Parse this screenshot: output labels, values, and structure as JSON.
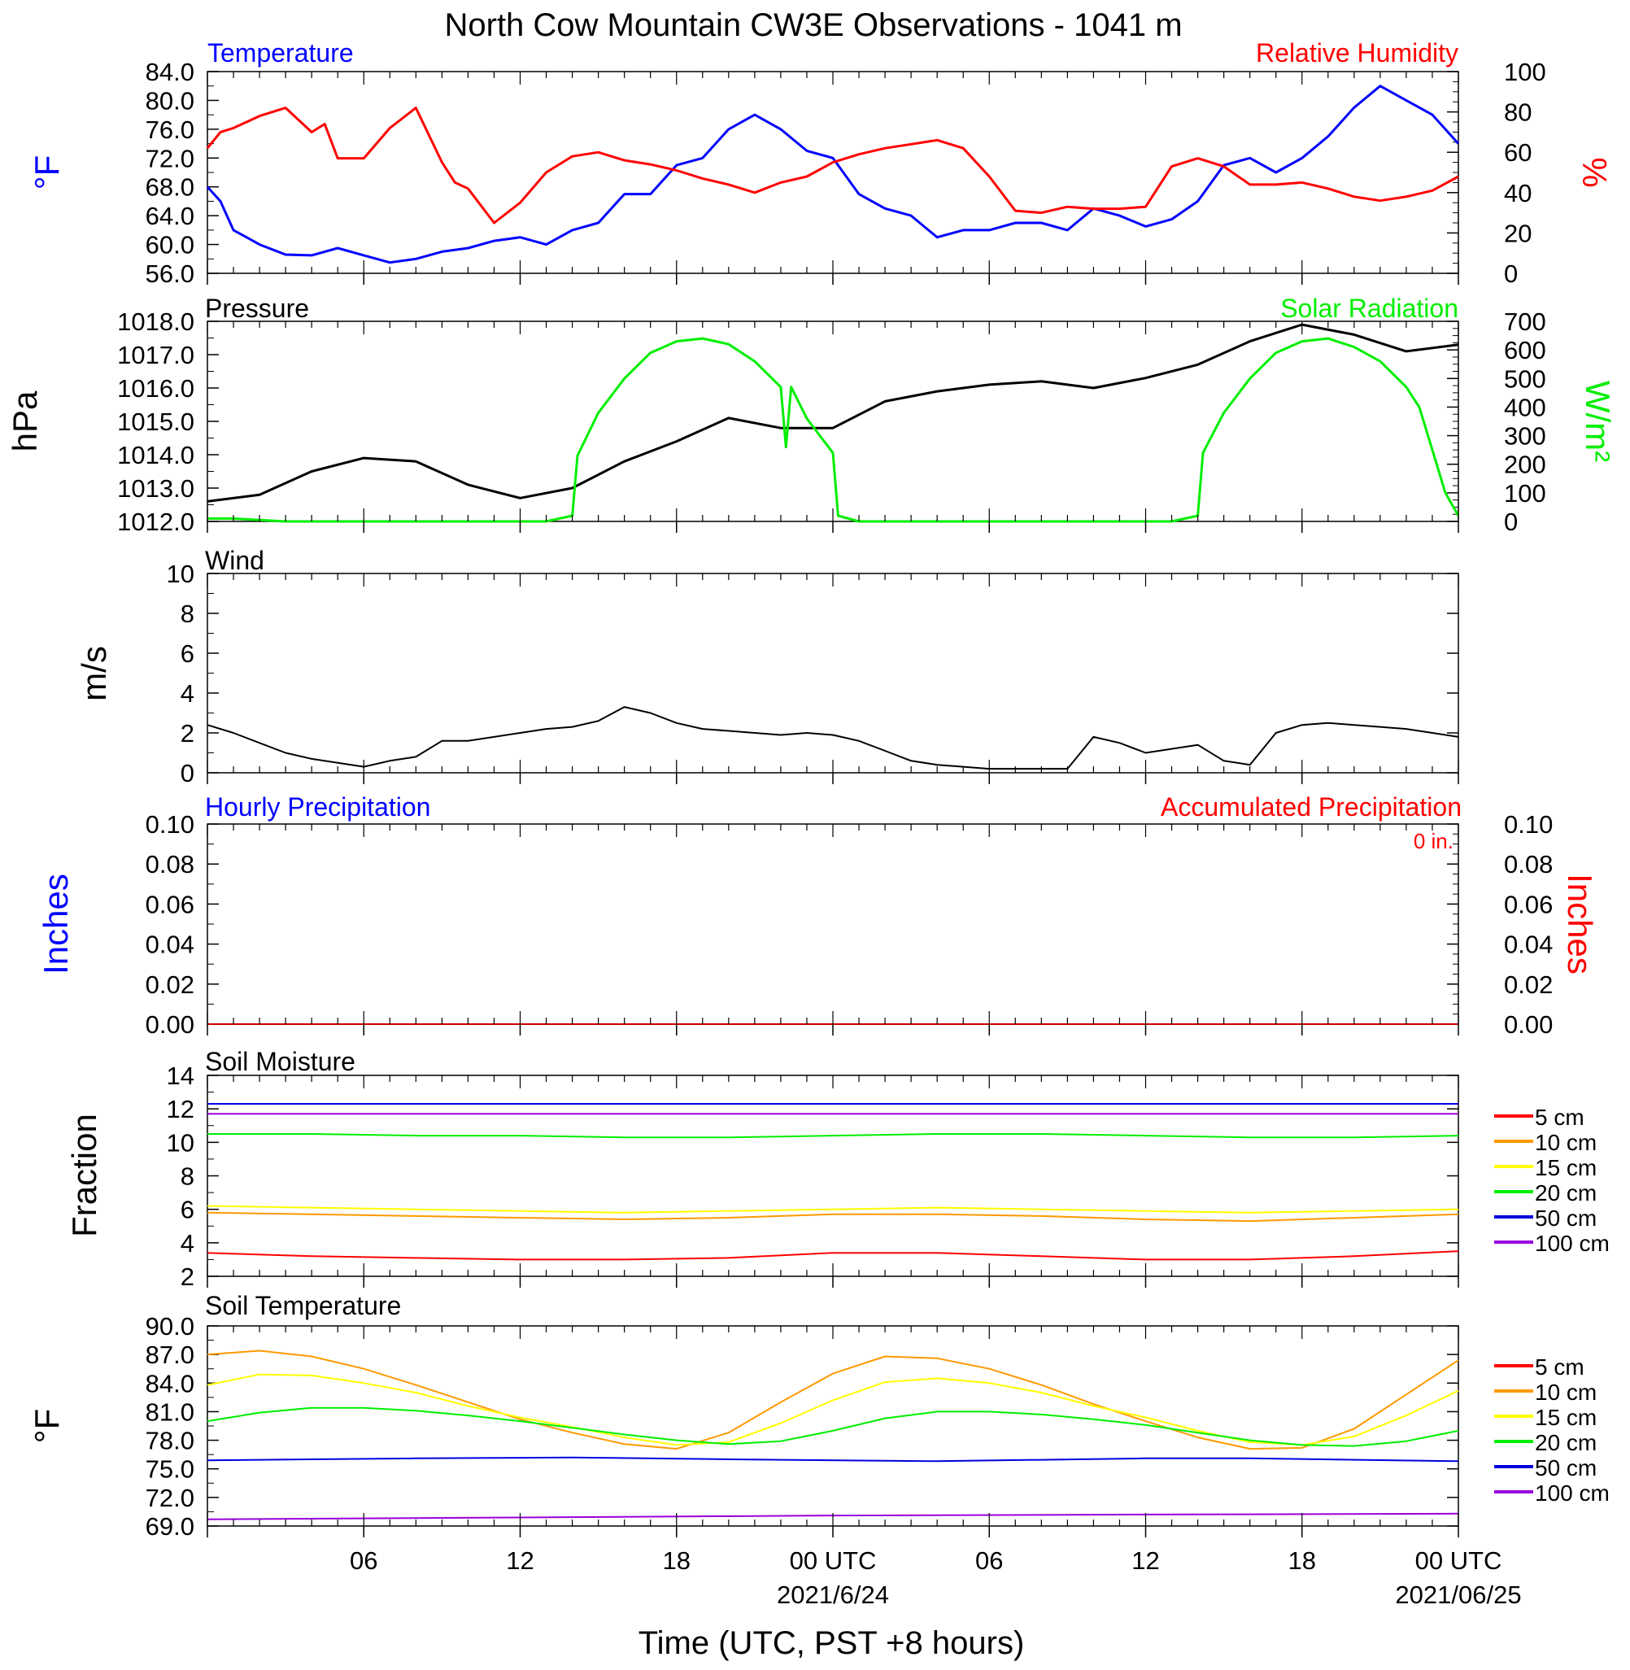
{
  "title": "North Cow Mountain CW3E Observations - 1041 m",
  "x_axis": {
    "label": "Time (UTC, PST +8 hours)",
    "range_hours": [
      0,
      48
    ],
    "ticks": [
      {
        "hour": 6,
        "label": "06"
      },
      {
        "hour": 12,
        "label": "12"
      },
      {
        "hour": 18,
        "label": "18"
      },
      {
        "hour": 24,
        "label": "00 UTC",
        "sublabel": "2021/6/24"
      },
      {
        "hour": 30,
        "label": "06"
      },
      {
        "hour": 36,
        "label": "12"
      },
      {
        "hour": 42,
        "label": "18"
      },
      {
        "hour": 48,
        "label": "00 UTC",
        "sublabel": "2021/06/25"
      }
    ]
  },
  "panels": {
    "temp": {
      "left_title": "Temperature",
      "right_title": "Relative Humidity",
      "left_unit": "°F",
      "right_unit": "%",
      "left_ticks": [
        "84.0",
        "80.0",
        "76.0",
        "72.0",
        "68.0",
        "64.0",
        "60.0",
        "56.0"
      ],
      "right_ticks": [
        "100",
        "80",
        "60",
        "40",
        "20",
        "0"
      ]
    },
    "pressure": {
      "left_title": "Pressure",
      "right_title": "Solar Radiation",
      "left_unit": "hPa",
      "right_unit": "W/m²",
      "left_ticks": [
        "1018.0",
        "1017.0",
        "1016.0",
        "1015.0",
        "1014.0",
        "1013.0",
        "1012.0"
      ],
      "right_ticks": [
        "700",
        "600",
        "500",
        "400",
        "300",
        "200",
        "100",
        "0"
      ]
    },
    "wind": {
      "left_title": "Wind",
      "left_unit": "m/s",
      "left_ticks": [
        "10",
        "8",
        "6",
        "4",
        "2",
        "0"
      ]
    },
    "precip": {
      "left_title": "Hourly Precipitation",
      "right_title": "Accumulated Precipitation",
      "accum_label": "0 in.",
      "left_unit": "Inches",
      "right_unit": "Inches",
      "left_ticks": [
        "0.10",
        "0.08",
        "0.06",
        "0.04",
        "0.02",
        "0.00"
      ],
      "right_ticks": [
        "0.10",
        "0.08",
        "0.06",
        "0.04",
        "0.02",
        "0.00"
      ]
    },
    "soilm": {
      "left_title": "Soil Moisture",
      "left_unit": "Fraction",
      "left_ticks": [
        "14",
        "12",
        "10",
        "8",
        "6",
        "4",
        "2"
      ]
    },
    "soilt": {
      "left_title": "Soil Temperature",
      "left_unit": "°F",
      "left_ticks": [
        "90.0",
        "87.0",
        "84.0",
        "81.0",
        "78.0",
        "75.0",
        "72.0",
        "69.0"
      ]
    }
  },
  "legend": [
    {
      "label": "5 cm",
      "color": "#ff0000"
    },
    {
      "label": "10 cm",
      "color": "#ff9900"
    },
    {
      "label": "15 cm",
      "color": "#ffff00"
    },
    {
      "label": "20 cm",
      "color": "#00ee00"
    },
    {
      "label": "50 cm",
      "color": "#0000dd"
    },
    {
      "label": "100 cm",
      "color": "#9900dd"
    }
  ],
  "chart_data": [
    {
      "type": "line",
      "panel": "temp",
      "xlim": [
        0,
        48
      ],
      "ylim_left": [
        56,
        84
      ],
      "ylim_right": [
        0,
        100
      ],
      "series": [
        {
          "name": "Temperature",
          "axis": "left",
          "color": "#0000ff",
          "x": [
            0,
            0.5,
            1,
            1.5,
            2,
            3,
            4,
            5,
            6,
            7,
            8,
            9,
            10,
            11,
            12,
            13,
            14,
            15,
            16,
            17,
            18,
            19,
            20,
            21,
            22,
            23,
            24,
            25,
            26,
            27,
            28,
            29,
            30,
            31,
            32,
            33,
            34,
            35,
            36,
            37,
            38,
            39,
            40,
            41,
            42,
            43,
            44,
            45,
            46,
            47,
            48
          ],
          "y": [
            68,
            66,
            62,
            61,
            60,
            58.6,
            58.5,
            59.5,
            58.5,
            57.5,
            58,
            59,
            59.5,
            60.5,
            61,
            60,
            62,
            63,
            67,
            67,
            71,
            72,
            76,
            78,
            76,
            73,
            72,
            67,
            65,
            64,
            61,
            62,
            62,
            63,
            63,
            62,
            65,
            64,
            62.5,
            63.5,
            66,
            71,
            72,
            70,
            72,
            75,
            79,
            82,
            80,
            78,
            74
          ]
        },
        {
          "name": "Relative Humidity",
          "axis": "right",
          "color": "#ff0000",
          "x": [
            0,
            0.5,
            1,
            1.5,
            2,
            3,
            4,
            4.5,
            5,
            6,
            7,
            8,
            9,
            9.5,
            10,
            11,
            12,
            13,
            14,
            15,
            16,
            17,
            18,
            19,
            20,
            21,
            22,
            23,
            24,
            25,
            26,
            27,
            28,
            29,
            30,
            31,
            32,
            33,
            34,
            35,
            36,
            37,
            38,
            39,
            40,
            41,
            42,
            43,
            44,
            45,
            46,
            47,
            48
          ],
          "y": [
            62,
            70,
            72,
            75,
            78,
            82,
            70,
            74,
            57,
            57,
            72,
            82,
            55,
            45,
            42,
            25,
            35,
            50,
            58,
            60,
            56,
            54,
            51,
            47,
            44,
            40,
            45,
            48,
            55,
            59,
            62,
            64,
            66,
            62,
            48,
            31,
            30,
            33,
            32,
            32,
            33,
            53,
            57,
            53,
            44,
            44,
            45,
            42,
            38,
            36,
            38,
            41,
            48
          ]
        }
      ]
    },
    {
      "type": "line",
      "panel": "pressure",
      "xlim": [
        0,
        48
      ],
      "ylim_left": [
        1012,
        1018
      ],
      "ylim_right": [
        0,
        700
      ],
      "series": [
        {
          "name": "Pressure",
          "axis": "left",
          "color": "#000000",
          "x": [
            0,
            2,
            4,
            6,
            8,
            10,
            12,
            14,
            16,
            18,
            20,
            22,
            24,
            26,
            28,
            30,
            32,
            34,
            36,
            38,
            40,
            42,
            44,
            46,
            48
          ],
          "y": [
            1012.6,
            1012.8,
            1013.5,
            1013.9,
            1013.8,
            1013.1,
            1012.7,
            1013.0,
            1013.8,
            1014.4,
            1015.1,
            1014.8,
            1014.8,
            1015.6,
            1015.9,
            1016.1,
            1016.2,
            1016.0,
            1016.3,
            1016.7,
            1017.4,
            1017.9,
            1017.6,
            1017.1,
            1017.3
          ]
        },
        {
          "name": "Solar Radiation",
          "axis": "right",
          "color": "#00ee00",
          "x": [
            0,
            1,
            3,
            5,
            7,
            9,
            11,
            13,
            14,
            14.2,
            15,
            16,
            17,
            18,
            19,
            20,
            21,
            22,
            22.2,
            22.4,
            23,
            23.5,
            24,
            24.2,
            25,
            27,
            29,
            31,
            33,
            35,
            37,
            38,
            38.2,
            39,
            40,
            41,
            42,
            43,
            44,
            45,
            46,
            46.5,
            47,
            47.5,
            48
          ],
          "y": [
            10,
            10,
            0,
            0,
            0,
            0,
            0,
            0,
            20,
            230,
            380,
            500,
            590,
            630,
            640,
            620,
            560,
            470,
            260,
            470,
            360,
            300,
            240,
            20,
            0,
            0,
            0,
            0,
            0,
            0,
            0,
            20,
            240,
            380,
            500,
            590,
            630,
            640,
            610,
            560,
            470,
            400,
            250,
            100,
            20
          ]
        }
      ]
    },
    {
      "type": "line",
      "panel": "wind",
      "xlim": [
        0,
        48
      ],
      "ylim": [
        0,
        10
      ],
      "series": [
        {
          "name": "Wind speed",
          "color": "#000000",
          "x": [
            0,
            1,
            2,
            3,
            4,
            5,
            6,
            7,
            8,
            9,
            10,
            11,
            12,
            13,
            14,
            15,
            16,
            17,
            18,
            19,
            20,
            21,
            22,
            23,
            24,
            25,
            26,
            27,
            28,
            29,
            30,
            31,
            32,
            33,
            34,
            35,
            36,
            37,
            38,
            39,
            40,
            41,
            42,
            43,
            44,
            45,
            46,
            47,
            48
          ],
          "y": [
            2.4,
            2.0,
            1.5,
            1.0,
            0.7,
            0.5,
            0.3,
            0.6,
            0.8,
            1.6,
            1.6,
            1.8,
            2.0,
            2.2,
            2.3,
            2.6,
            3.3,
            3.0,
            2.5,
            2.2,
            2.1,
            2.0,
            1.9,
            2.0,
            1.9,
            1.6,
            1.1,
            0.6,
            0.4,
            0.3,
            0.2,
            0.2,
            0.2,
            0.2,
            1.8,
            1.5,
            1.0,
            1.2,
            1.4,
            0.6,
            0.4,
            2.0,
            2.4,
            2.5,
            2.4,
            2.3,
            2.2,
            2.0,
            1.8
          ]
        }
      ]
    },
    {
      "type": "line",
      "panel": "precip",
      "xlim": [
        0,
        48
      ],
      "ylim": [
        0,
        0.1
      ],
      "series": [
        {
          "name": "Hourly Precipitation",
          "color": "#0000ff",
          "x": [
            0,
            48
          ],
          "y": [
            0,
            0
          ]
        },
        {
          "name": "Accumulated Precipitation",
          "color": "#cc0000",
          "x": [
            0,
            48
          ],
          "y": [
            0,
            0
          ]
        }
      ]
    },
    {
      "type": "line",
      "panel": "soilm",
      "xlim": [
        0,
        48
      ],
      "ylim": [
        2,
        14
      ],
      "series": [
        {
          "name": "5 cm",
          "color": "#ff0000",
          "x": [
            0,
            4,
            8,
            12,
            16,
            20,
            24,
            28,
            32,
            36,
            40,
            44,
            48
          ],
          "y": [
            3.4,
            3.2,
            3.1,
            3.0,
            3.0,
            3.1,
            3.4,
            3.4,
            3.2,
            3.0,
            3.0,
            3.2,
            3.5
          ]
        },
        {
          "name": "10 cm",
          "color": "#ff9900",
          "x": [
            0,
            4,
            8,
            12,
            16,
            20,
            24,
            28,
            32,
            36,
            40,
            44,
            48
          ],
          "y": [
            5.8,
            5.7,
            5.6,
            5.5,
            5.4,
            5.5,
            5.7,
            5.7,
            5.6,
            5.4,
            5.3,
            5.5,
            5.7
          ]
        },
        {
          "name": "15 cm",
          "color": "#ffff00",
          "x": [
            0,
            4,
            8,
            12,
            16,
            20,
            24,
            28,
            32,
            36,
            40,
            44,
            48
          ],
          "y": [
            6.2,
            6.1,
            6.0,
            5.9,
            5.8,
            5.9,
            6.0,
            6.1,
            6.0,
            5.9,
            5.8,
            5.9,
            6.0
          ]
        },
        {
          "name": "20 cm",
          "color": "#00ee00",
          "x": [
            0,
            4,
            8,
            12,
            16,
            20,
            24,
            28,
            32,
            36,
            40,
            44,
            48
          ],
          "y": [
            10.5,
            10.5,
            10.4,
            10.4,
            10.3,
            10.3,
            10.4,
            10.5,
            10.5,
            10.4,
            10.3,
            10.3,
            10.4
          ]
        },
        {
          "name": "50 cm",
          "color": "#0000dd",
          "x": [
            0,
            48
          ],
          "y": [
            12.3,
            12.3
          ]
        },
        {
          "name": "100 cm",
          "color": "#9900dd",
          "x": [
            0,
            48
          ],
          "y": [
            11.7,
            11.7
          ]
        }
      ]
    },
    {
      "type": "line",
      "panel": "soilt",
      "xlim": [
        0,
        48
      ],
      "ylim": [
        69,
        90
      ],
      "series": [
        {
          "name": "5 cm",
          "color": "#ff0000",
          "x": [],
          "y": []
        },
        {
          "name": "10 cm",
          "color": "#ff9900",
          "x": [
            0,
            2,
            4,
            6,
            8,
            10,
            12,
            14,
            16,
            18,
            20,
            22,
            24,
            26,
            28,
            30,
            32,
            34,
            36,
            38,
            40,
            42,
            44,
            46,
            48
          ],
          "y": [
            87,
            87.4,
            86.8,
            85.5,
            83.8,
            82,
            80.2,
            78.8,
            77.6,
            77.1,
            78.8,
            82,
            85,
            86.8,
            86.6,
            85.5,
            83.8,
            81.8,
            80,
            78.3,
            77.1,
            77.2,
            79.2,
            82.8,
            86.4
          ]
        },
        {
          "name": "15 cm",
          "color": "#ffff00",
          "x": [
            0,
            2,
            4,
            6,
            8,
            10,
            12,
            14,
            16,
            18,
            20,
            22,
            24,
            26,
            28,
            30,
            32,
            34,
            36,
            38,
            40,
            42,
            44,
            46,
            48
          ],
          "y": [
            83.8,
            84.9,
            84.8,
            84,
            83,
            81.6,
            80.4,
            79.4,
            78.3,
            77.5,
            77.8,
            79.8,
            82.2,
            84.1,
            84.5,
            84,
            83,
            81.6,
            80.4,
            79,
            77.8,
            77.5,
            78.4,
            80.6,
            83.2
          ]
        },
        {
          "name": "20 cm",
          "color": "#00ee00",
          "x": [
            0,
            2,
            4,
            6,
            8,
            10,
            12,
            14,
            16,
            18,
            20,
            22,
            24,
            26,
            28,
            30,
            32,
            34,
            36,
            38,
            40,
            42,
            44,
            46,
            48
          ],
          "y": [
            80,
            80.9,
            81.4,
            81.4,
            81.1,
            80.6,
            80,
            79.3,
            78.6,
            78,
            77.6,
            77.9,
            79,
            80.3,
            81,
            81,
            80.7,
            80.2,
            79.6,
            78.8,
            78,
            77.5,
            77.4,
            77.9,
            79
          ]
        },
        {
          "name": "50 cm",
          "color": "#0000dd",
          "x": [
            0,
            8,
            14,
            20,
            28,
            36,
            40,
            48
          ],
          "y": [
            75.9,
            76.1,
            76.2,
            76.0,
            75.8,
            76.1,
            76.1,
            75.8
          ]
        },
        {
          "name": "100 cm",
          "color": "#9900dd",
          "x": [
            0,
            12,
            24,
            36,
            48
          ],
          "y": [
            69.7,
            69.9,
            70.1,
            70.2,
            70.3
          ]
        }
      ]
    }
  ]
}
